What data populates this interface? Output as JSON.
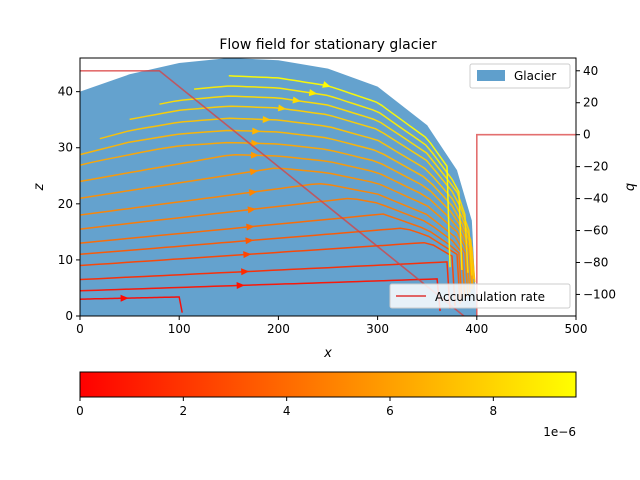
{
  "chart_data": {
    "type": "streamplot",
    "title": "Flow field for stationary glacier",
    "xlabel": "x",
    "ylabel_left": "z",
    "ylabel_right": "q",
    "xlim": [
      0,
      500
    ],
    "ylim_left": [
      0,
      46
    ],
    "ylim_right": [
      -113.5,
      48
    ],
    "xticks": [
      0,
      100,
      200,
      300,
      400,
      500
    ],
    "yticks_left": [
      0,
      10,
      20,
      30,
      40
    ],
    "yticks_right": [
      40,
      20,
      0,
      -20,
      -40,
      -60,
      -80,
      -100
    ],
    "glacier_surface": {
      "x": [
        0,
        50,
        100,
        150,
        200,
        250,
        300,
        350,
        380,
        395,
        400
      ],
      "z": [
        40,
        43.1,
        45.1,
        46,
        45.6,
        44.1,
        40.9,
        34,
        26,
        17,
        0
      ]
    },
    "accumulation_rate": {
      "x": [
        0,
        80,
        400,
        400,
        500
      ],
      "q": [
        40,
        40,
        -120,
        0,
        0
      ]
    },
    "streamlines": [
      {
        "z0": 3,
        "x0": 0,
        "x1": 100,
        "speed": 0.3
      },
      {
        "z0": 4.5,
        "x0": 0,
        "x1": 360,
        "speed": 0.7
      },
      {
        "z0": 6.5,
        "x0": 0,
        "x1": 370,
        "speed": 1.6
      },
      {
        "z0": 9,
        "x0": 0,
        "x1": 375,
        "speed": 2.6
      },
      {
        "z0": 11,
        "x0": 0,
        "x1": 380,
        "speed": 3.3
      },
      {
        "z0": 13,
        "x0": 0,
        "x1": 382,
        "speed": 4.0
      },
      {
        "z0": 15.5,
        "x0": 0,
        "x1": 385,
        "speed": 4.6
      },
      {
        "z0": 18,
        "x0": 0,
        "x1": 388,
        "speed": 5.0
      },
      {
        "z0": 21,
        "x0": 0,
        "x1": 390,
        "speed": 5.4
      },
      {
        "z0": 24,
        "x0": 0,
        "x1": 392,
        "speed": 5.8
      },
      {
        "z0": 27,
        "x0": 0,
        "x1": 393,
        "speed": 6.3
      },
      {
        "z0": 30,
        "x0": 0,
        "x1": 395,
        "speed": 6.8
      },
      {
        "z0": 33,
        "x0": 20,
        "x1": 394,
        "speed": 7.3
      },
      {
        "z0": 36,
        "x0": 50,
        "x1": 392,
        "speed": 7.8
      },
      {
        "z0": 38.5,
        "x0": 80,
        "x1": 388,
        "speed": 8.3
      },
      {
        "z0": 41,
        "x0": 115,
        "x1": 382,
        "speed": 8.9
      },
      {
        "z0": 43.5,
        "x0": 150,
        "x1": 370,
        "speed": 9.5
      }
    ],
    "colorbar": {
      "cmap": "autumn",
      "colors": [
        "#ff0000",
        "#ffff00"
      ],
      "range": [
        0,
        9.6e-06
      ],
      "ticks": [
        "0",
        "2",
        "4",
        "6",
        "8"
      ],
      "tick_values": [
        0,
        2e-06,
        4e-06,
        6e-06,
        8e-06
      ],
      "offset_text": "1e−6"
    },
    "legend": [
      {
        "label": "Glacier",
        "color": "#5f9fcc",
        "location": "upper-right"
      },
      {
        "label": "Accumulation rate",
        "color": "#e05050",
        "location": "lower-right"
      }
    ]
  }
}
